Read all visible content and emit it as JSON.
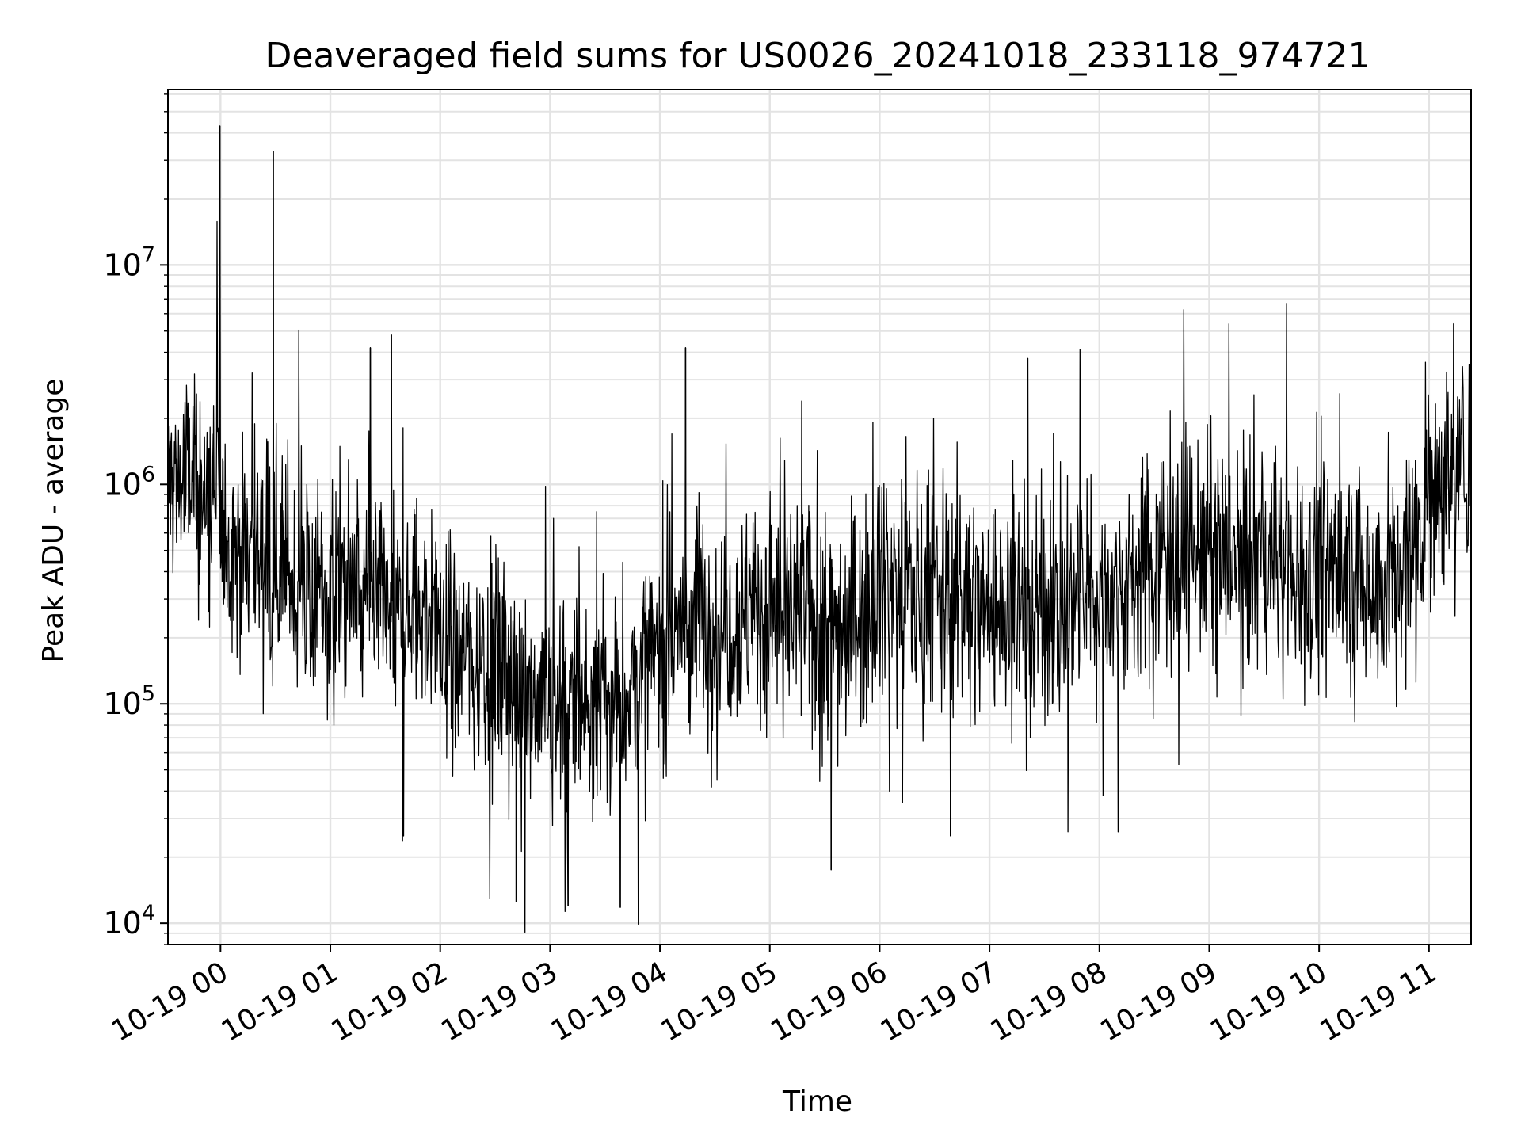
{
  "chart_data": {
    "type": "line",
    "title": "Deaveraged field sums for US0026_20241018_233118_974721",
    "xlabel": "Time",
    "ylabel": "Peak ADU - average",
    "yscale": "log",
    "ylim": [
      8000,
      63000000
    ],
    "xlim": [
      "2024-10-18 23:31:18",
      "2024-10-19 11:23:00"
    ],
    "x_tick_labels": [
      "10-19 00",
      "10-19 01",
      "10-19 02",
      "10-19 03",
      "10-19 04",
      "10-19 05",
      "10-19 06",
      "10-19 07",
      "10-19 08",
      "10-19 09",
      "10-19 10",
      "10-19 11"
    ],
    "x_tick_times": [
      "2024-10-19 00:00",
      "2024-10-19 01:00",
      "2024-10-19 02:00",
      "2024-10-19 03:00",
      "2024-10-19 04:00",
      "2024-10-19 05:00",
      "2024-10-19 06:00",
      "2024-10-19 07:00",
      "2024-10-19 08:00",
      "2024-10-19 09:00",
      "2024-10-19 10:00",
      "2024-10-19 11:00"
    ],
    "y_tick_values": [
      10000,
      100000,
      1000000,
      10000000
    ],
    "y_tick_labels": [
      {
        "base": "10",
        "exp": "4"
      },
      {
        "base": "10",
        "exp": "5"
      },
      {
        "base": "10",
        "exp": "6"
      },
      {
        "base": "10",
        "exp": "7"
      }
    ],
    "grid": true,
    "legend": "none",
    "line_color": "#000000",
    "series": [
      {
        "x": [
          "2024-10-18 23:31",
          "2024-10-18 23:40",
          "2024-10-18 23:50",
          "2024-10-19 00:00",
          "2024-10-19 00:10",
          "2024-10-19 00:20",
          "2024-10-19 00:30",
          "2024-10-19 00:40",
          "2024-10-19 00:50",
          "2024-10-19 01:00",
          "2024-10-19 01:10",
          "2024-10-19 01:20",
          "2024-10-19 01:30",
          "2024-10-19 01:40",
          "2024-10-19 01:50",
          "2024-10-19 02:00",
          "2024-10-19 02:10",
          "2024-10-19 02:20",
          "2024-10-19 02:30",
          "2024-10-19 02:40",
          "2024-10-19 02:50",
          "2024-10-19 03:00",
          "2024-10-19 03:10",
          "2024-10-19 03:20",
          "2024-10-19 03:30",
          "2024-10-19 03:40",
          "2024-10-19 03:50",
          "2024-10-19 04:00",
          "2024-10-19 04:10",
          "2024-10-19 04:20",
          "2024-10-19 04:30",
          "2024-10-19 04:40",
          "2024-10-19 04:50",
          "2024-10-19 05:00",
          "2024-10-19 05:10",
          "2024-10-19 05:20",
          "2024-10-19 05:30",
          "2024-10-19 05:40",
          "2024-10-19 05:50",
          "2024-10-19 06:00",
          "2024-10-19 06:10",
          "2024-10-19 06:20",
          "2024-10-19 06:30",
          "2024-10-19 06:40",
          "2024-10-19 06:50",
          "2024-10-19 07:00",
          "2024-10-19 07:10",
          "2024-10-19 07:20",
          "2024-10-19 07:30",
          "2024-10-19 07:40",
          "2024-10-19 07:50",
          "2024-10-19 08:00",
          "2024-10-19 08:10",
          "2024-10-19 08:20",
          "2024-10-19 08:30",
          "2024-10-19 08:40",
          "2024-10-19 08:50",
          "2024-10-19 09:00",
          "2024-10-19 09:10",
          "2024-10-19 09:20",
          "2024-10-19 09:30",
          "2024-10-19 09:40",
          "2024-10-19 09:50",
          "2024-10-19 10:00",
          "2024-10-19 10:10",
          "2024-10-19 10:20",
          "2024-10-19 10:30",
          "2024-10-19 10:40",
          "2024-10-19 10:50",
          "2024-10-19 11:00",
          "2024-10-19 11:10",
          "2024-10-19 11:20"
        ],
        "values": [
          1000000,
          1100000,
          900000,
          600000,
          500000,
          550000,
          450000,
          350000,
          300000,
          300000,
          350000,
          280000,
          250000,
          250000,
          280000,
          200000,
          180000,
          160000,
          150000,
          120000,
          120000,
          110000,
          100000,
          100000,
          100000,
          110000,
          130000,
          180000,
          220000,
          250000,
          250000,
          250000,
          260000,
          250000,
          260000,
          250000,
          250000,
          230000,
          260000,
          400000,
          350000,
          330000,
          300000,
          320000,
          280000,
          280000,
          270000,
          280000,
          260000,
          270000,
          300000,
          320000,
          330000,
          380000,
          500000,
          550000,
          500000,
          480000,
          450000,
          450000,
          430000,
          420000,
          420000,
          420000,
          400000,
          380000,
          370000,
          350000,
          500000,
          1000000,
          1100000,
          1300000
        ]
      },
      {
        "x": [
          "2024-10-18 23:59:40",
          "2024-10-19 00:28:50",
          "2024-10-19 01:21:50",
          "2024-10-19 01:33:20",
          "2024-10-19 04:14:00",
          "2024-10-19 11:13:30"
        ],
        "values": [
          43000000,
          33000000,
          4200000,
          4800000,
          4200000,
          5400000
        ]
      },
      {
        "x": [
          "2024-10-19 02:41:30",
          "2024-10-19 03:09:50",
          "2024-10-19 03:38:20",
          "2024-10-19 05:33:30",
          "2024-10-19 06:38:40"
        ],
        "values": [
          12500,
          12000,
          11800,
          17500,
          25000
        ]
      }
    ]
  }
}
